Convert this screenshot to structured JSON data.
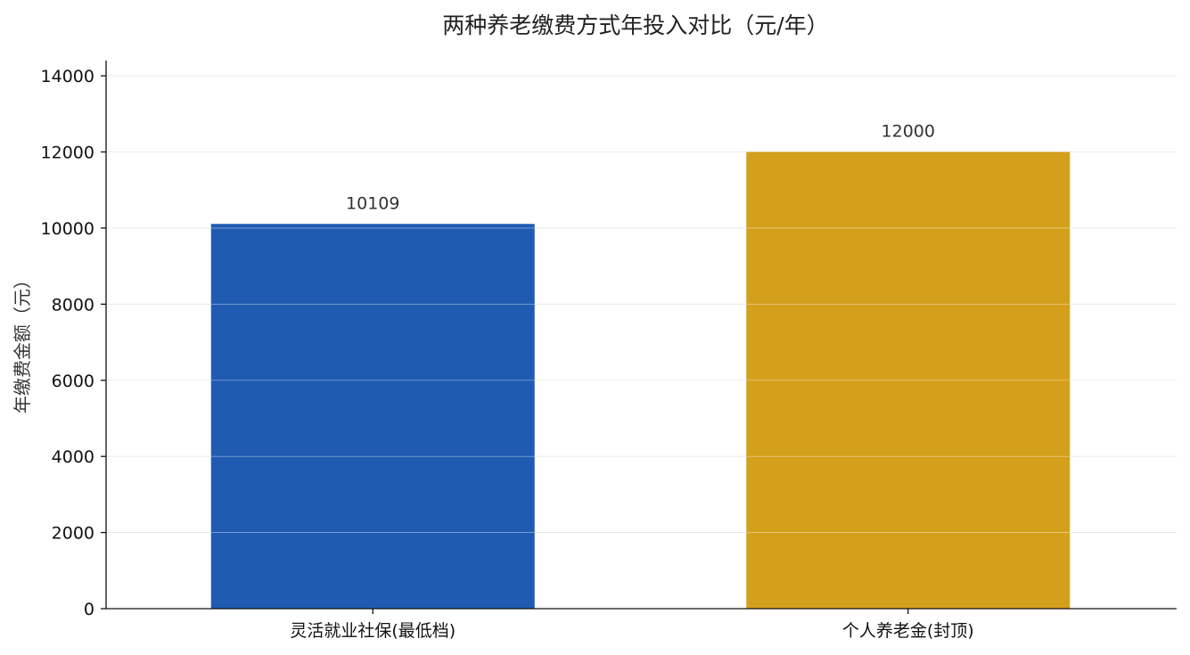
{
  "chart_data": {
    "type": "bar",
    "title": "两种养老缴费方式年投入对比（元/年）",
    "xlabel": "",
    "ylabel": "年缴费金额（元）",
    "categories": [
      "灵活就业社保(最低档)",
      "个人养老金(封顶)"
    ],
    "values": [
      10109,
      12000
    ],
    "value_labels": [
      "10109",
      "12000"
    ],
    "colors": [
      "#1f5bb1",
      "#d4a01b"
    ],
    "ylim": [
      0,
      14400
    ],
    "yticks": [
      0,
      2000,
      4000,
      6000,
      8000,
      10000,
      12000,
      14000
    ],
    "grid": "horizontal"
  }
}
